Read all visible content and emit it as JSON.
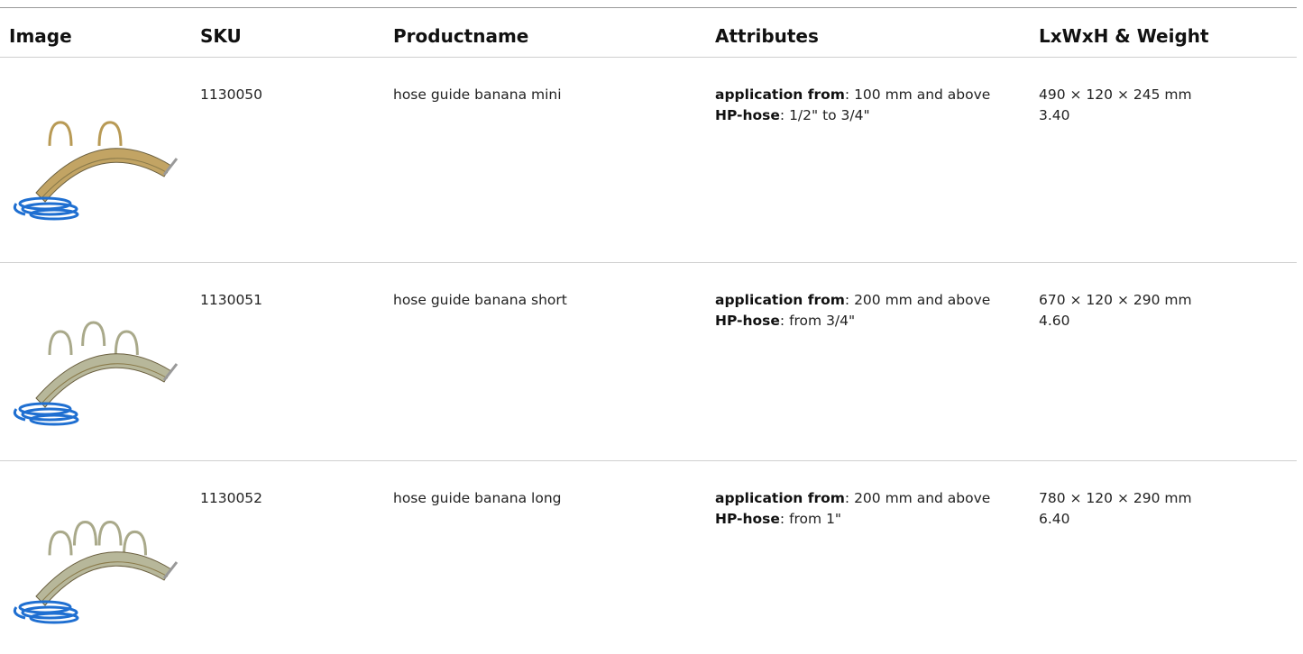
{
  "table": {
    "headers": [
      "Image",
      "SKU",
      "Productname",
      "Attributes",
      "LxWxH & Weight"
    ],
    "rows": [
      {
        "sku": "1130050",
        "name": "hose guide banana mini",
        "attributes": [
          {
            "label": "application from",
            "text": ": 100 mm and above"
          },
          {
            "label": "HP-hose",
            "text": ": 1/2\" to 3/4\""
          }
        ],
        "dimensions": "490 × 120 × 245 mm",
        "weight": "3.40"
      },
      {
        "sku": "1130051",
        "name": "hose guide banana short",
        "attributes": [
          {
            "label": "application from",
            "text": ": 200 mm and above"
          },
          {
            "label": "HP-hose",
            "text": ": from 3/4\""
          }
        ],
        "dimensions": "670 × 120 × 290 mm",
        "weight": "4.60"
      },
      {
        "sku": "1130052",
        "name": "hose guide banana long",
        "attributes": [
          {
            "label": "application from",
            "text": ": 200 mm and above"
          },
          {
            "label": "HP-hose",
            "text": ": from 1\""
          }
        ],
        "dimensions": "780 × 120 × 290 mm",
        "weight": "6.40"
      }
    ]
  }
}
